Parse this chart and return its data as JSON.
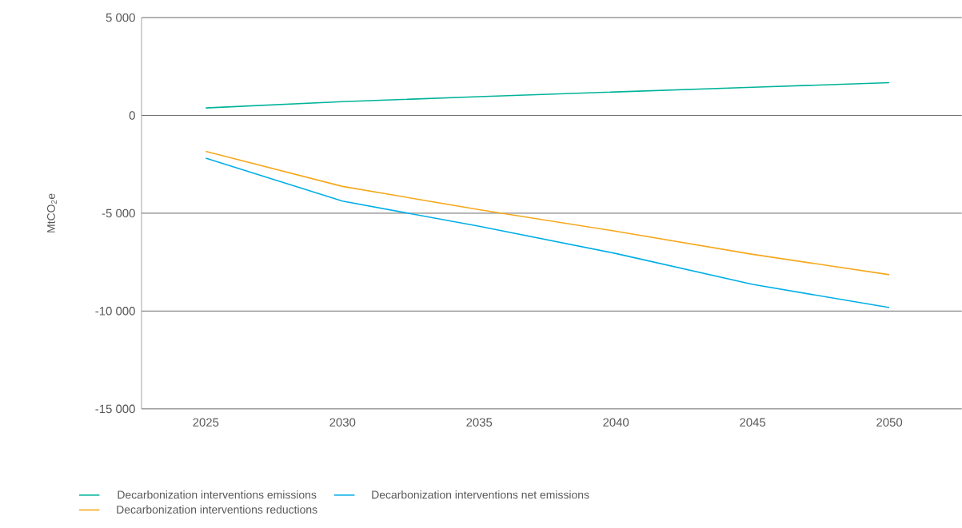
{
  "chart_data": {
    "type": "line",
    "categories": [
      "2025",
      "2030",
      "2035",
      "2040",
      "2045",
      "2050"
    ],
    "series": [
      {
        "name": "Decarbonization interventions emissions",
        "color": "#00b39a",
        "values": [
          380,
          700,
          960,
          1200,
          1440,
          1670
        ]
      },
      {
        "name": "Decarbonization interventions net emissions",
        "color": "#00aee6",
        "values": [
          -2190,
          -4380,
          -5670,
          -7060,
          -8640,
          -9820
        ]
      },
      {
        "name": "Decarbonization interventions reductions",
        "color": "#f5a81c",
        "values": [
          -1840,
          -3630,
          -4820,
          -5920,
          -7100,
          -8140
        ]
      }
    ],
    "ylabel": "MtCO$_{2}$e",
    "ylim": [
      -15000,
      5000
    ],
    "yticks": [
      {
        "value": -15000,
        "label": "-15 000"
      },
      {
        "value": -10000,
        "label": "-10 000"
      },
      {
        "value": -5000,
        "label": "-5 000"
      },
      {
        "value": 0,
        "label": "0"
      },
      {
        "value": 5000,
        "label": "5 000"
      }
    ],
    "grid": "y",
    "legend": "bottom"
  }
}
